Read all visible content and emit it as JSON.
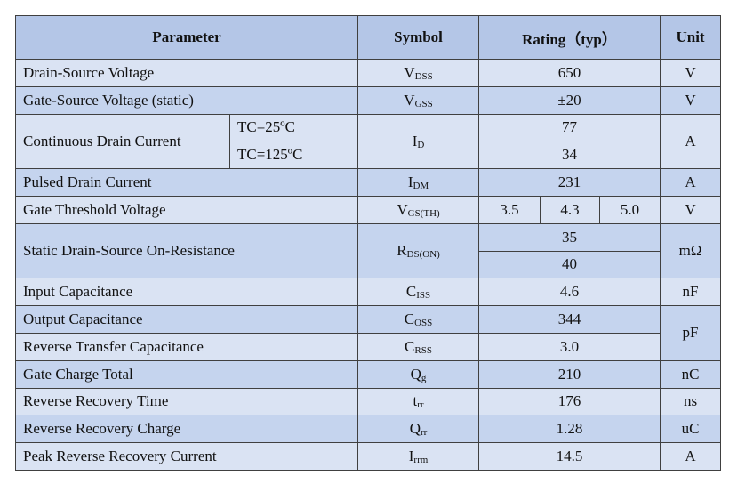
{
  "header": {
    "parameter": "Parameter",
    "symbol": "Symbol",
    "rating": "Rating（typ）",
    "unit": "Unit"
  },
  "rows": [
    {
      "parameter": "Drain-Source Voltage",
      "symbol": {
        "main": "V",
        "sub": "DSS"
      },
      "rating": "650",
      "unit": "V"
    },
    {
      "parameter": "Gate-Source Voltage (static)",
      "symbol": {
        "main": "V",
        "sub": "GSS"
      },
      "rating": "±20",
      "unit": "V"
    },
    {
      "parameter": "Continuous Drain Current",
      "conditions": [
        "TC=25ºC",
        "TC=125ºC"
      ],
      "symbol": {
        "main": "I",
        "sub": "D"
      },
      "ratings": [
        "77",
        "34"
      ],
      "unit": "A"
    },
    {
      "parameter": "Pulsed Drain Current",
      "symbol": {
        "main": "I",
        "sub": "DM"
      },
      "rating": "231",
      "unit": "A"
    },
    {
      "parameter": "Gate Threshold Voltage",
      "symbol": {
        "main": "V",
        "sub": "GS(TH)"
      },
      "ratings": [
        "3.5",
        "4.3",
        "5.0"
      ],
      "unit": "V"
    },
    {
      "parameter": "Static Drain-Source On-Resistance",
      "symbol": {
        "main": "R",
        "sub": "DS(ON)"
      },
      "ratings": [
        "35",
        "40"
      ],
      "unit": "mΩ"
    },
    {
      "parameter": "Input Capacitance",
      "symbol": {
        "main": "C",
        "sub": "ISS"
      },
      "rating": "4.6",
      "unit": "nF"
    },
    {
      "parameter": "Output Capacitance",
      "symbol": {
        "main": "C",
        "sub": "OSS"
      },
      "rating": "344",
      "unit": "pF"
    },
    {
      "parameter": "Reverse Transfer Capacitance",
      "symbol": {
        "main": "C",
        "sub": "RSS"
      },
      "rating": "3.0"
    },
    {
      "parameter": "Gate Charge Total",
      "symbol": {
        "main": "Q",
        "sub": "g"
      },
      "rating": "210",
      "unit": "nC"
    },
    {
      "parameter": "Reverse Recovery Time",
      "symbol": {
        "main": "t",
        "sub": "rr"
      },
      "rating": "176",
      "unit": "ns"
    },
    {
      "parameter": "Reverse Recovery Charge",
      "symbol": {
        "main": "Q",
        "sub": "rr"
      },
      "rating": "1.28",
      "unit": "uC"
    },
    {
      "parameter": "Peak Reverse Recovery Current",
      "symbol": {
        "main": "I",
        "sub": "rrm"
      },
      "rating": "14.5",
      "unit": "A"
    }
  ]
}
